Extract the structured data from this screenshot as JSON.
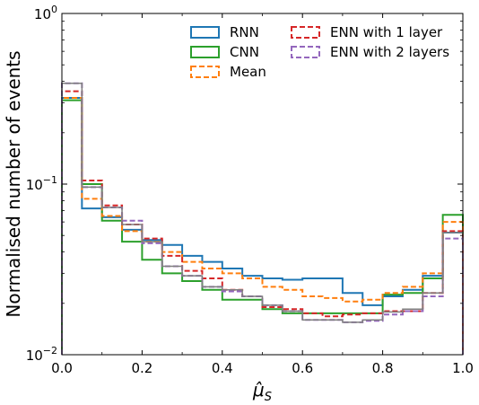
{
  "chart_data": {
    "type": "line",
    "style": "step-histogram",
    "xlabel_base": "μ̂",
    "xlabel_sub": "S",
    "ylabel": "Normalised number of events",
    "xlim": [
      0.0,
      1.0
    ],
    "ylim": [
      0.01,
      1
    ],
    "yscale": "log",
    "grid": false,
    "legend_position": "top-right",
    "legend_columns": 2,
    "x_ticks": [
      "0.0",
      "0.2",
      "0.4",
      "0.6",
      "0.8",
      "1.0"
    ],
    "y_ticks": [
      {
        "base": "10",
        "exp": "−2",
        "value": 0.01
      },
      {
        "base": "10",
        "exp": "−1",
        "value": 0.1
      },
      {
        "base": "10",
        "exp": "0",
        "value": 1
      }
    ],
    "bin_edges": [
      0.0,
      0.05,
      0.1,
      0.15,
      0.2,
      0.25,
      0.3,
      0.35,
      0.4,
      0.45,
      0.5,
      0.55,
      0.6,
      0.65,
      0.7,
      0.75,
      0.8,
      0.85,
      0.9,
      0.95,
      1.0
    ],
    "series": [
      {
        "name": "RNN",
        "color": "#1f77b4",
        "dashed": false,
        "values": [
          0.32,
          0.072,
          0.064,
          0.054,
          0.047,
          0.044,
          0.038,
          0.035,
          0.032,
          0.029,
          0.028,
          0.0275,
          0.028,
          0.028,
          0.023,
          0.0195,
          0.022,
          0.024,
          0.029,
          0.052
        ]
      },
      {
        "name": "CNN",
        "color": "#2ca02c",
        "dashed": false,
        "values": [
          0.31,
          0.1,
          0.061,
          0.046,
          0.036,
          0.03,
          0.027,
          0.024,
          0.021,
          0.021,
          0.0185,
          0.0175,
          0.0175,
          0.0175,
          0.0175,
          0.0175,
          0.0225,
          0.023,
          0.028,
          0.066
        ]
      },
      {
        "name": "Mean",
        "color": "#ff7f0e",
        "dashed": true,
        "values": [
          0.32,
          0.082,
          0.065,
          0.053,
          0.046,
          0.04,
          0.035,
          0.032,
          0.03,
          0.028,
          0.025,
          0.024,
          0.022,
          0.0215,
          0.0205,
          0.021,
          0.023,
          0.025,
          0.03,
          0.06
        ]
      },
      {
        "name": "ENN with 1 layer",
        "color": "#d62728",
        "dashed": true,
        "values": [
          0.35,
          0.105,
          0.075,
          0.058,
          0.048,
          0.038,
          0.031,
          0.028,
          0.024,
          0.022,
          0.019,
          0.0185,
          0.0175,
          0.0168,
          0.0172,
          0.0175,
          0.018,
          0.018,
          0.023,
          0.053
        ]
      },
      {
        "name": "ENN with 2 layers",
        "color": "#9467bd",
        "dashed": true,
        "values": [
          0.39,
          0.096,
          0.073,
          0.061,
          0.045,
          0.033,
          0.029,
          0.025,
          0.0235,
          0.022,
          0.0195,
          0.018,
          0.016,
          0.016,
          0.0155,
          0.0158,
          0.0172,
          0.018,
          0.022,
          0.048
        ]
      }
    ],
    "overlay_grey_values": [
      0.39,
      0.096,
      0.073,
      0.058,
      0.046,
      0.033,
      0.029,
      0.025,
      0.024,
      0.022,
      0.0195,
      0.018,
      0.016,
      0.016,
      0.0155,
      0.016,
      0.0178,
      0.0185,
      0.023,
      0.052
    ],
    "overlay_grey_color": "#7f7f7f"
  }
}
